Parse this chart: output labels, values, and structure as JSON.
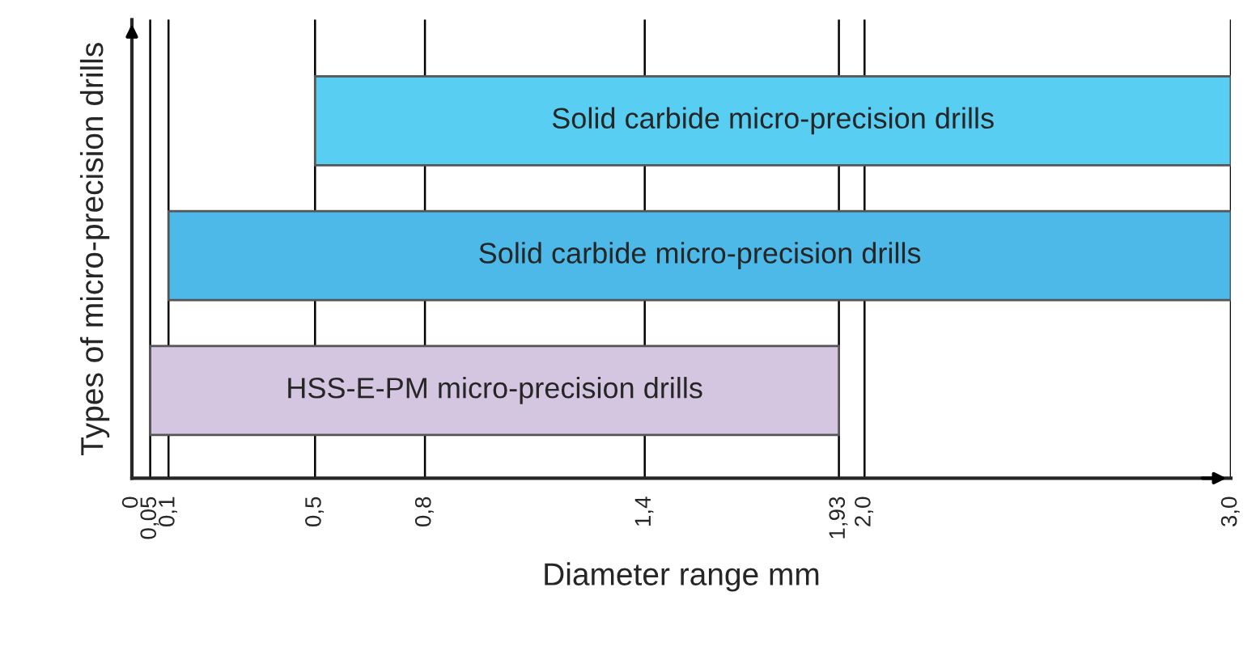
{
  "chart_data": {
    "type": "bar",
    "orientation": "horizontal",
    "ylabel": "Types of micro-precision drills",
    "xlabel": "Diameter range mm",
    "categories": [
      "Solid carbide micro-precision drills",
      "Solid carbide micro-precision drills",
      "HSS-E-PM micro-precision drills"
    ],
    "base": [
      0.5,
      0.1,
      0.05
    ],
    "values": [
      2.5,
      2.9,
      1.88
    ],
    "colors": [
      "#58cef2",
      "#4cb9e8",
      "#d4c5e1"
    ],
    "xlim": [
      0,
      3.0
    ],
    "xticks": [
      0,
      {
        "value": 0.05,
        "label": "0,05"
      },
      {
        "value": 0.1,
        "label": "0,1"
      },
      {
        "value": 0.5,
        "label": "0,5"
      },
      {
        "value": 0.8,
        "label": "0,8"
      },
      {
        "value": 1.4,
        "label": "1,4"
      },
      {
        "value": 1.93,
        "label": "1,93"
      },
      {
        "value": 2.0,
        "label": "2,0"
      },
      {
        "value": 3.0,
        "label": "3,0"
      }
    ],
    "grid": "x",
    "tick_labels": "x"
  }
}
